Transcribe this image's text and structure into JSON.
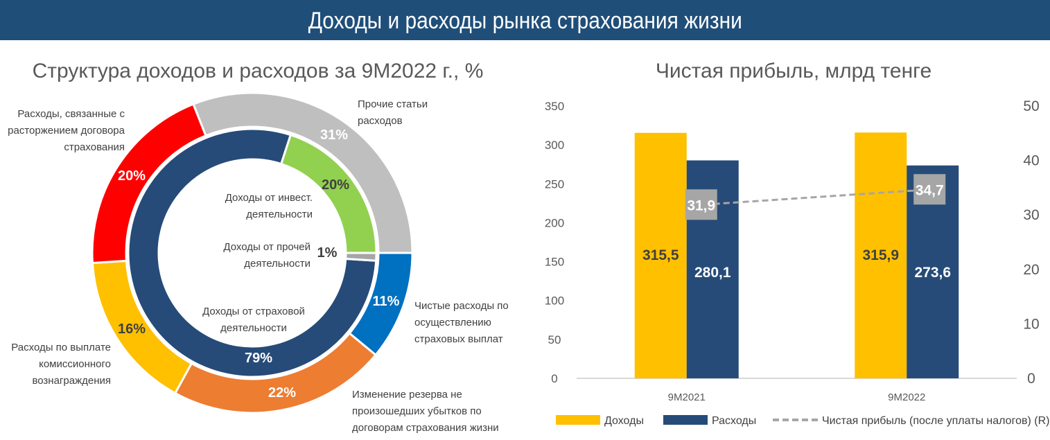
{
  "header": {
    "title": "Доходы и расходы рынка страхования жизни"
  },
  "colors": {
    "header": "#1f4e79",
    "navy": "#264b78",
    "yellow": "#ffc000",
    "gray_line": "#a6a6a6"
  },
  "chart_data": [
    {
      "type": "pie",
      "title": "Структура доходов и расходов за 9М2022 г., %",
      "rings": [
        {
          "ring": "outer",
          "slices": [
            {
              "name": "Чистые расходы по осуществлению страховых выплат",
              "value": 11,
              "label": "11%",
              "color": "#0070c0"
            },
            {
              "name": "Изменение резерва не произошедших убытков по договорам страхования жизни",
              "value": 22,
              "label": "22%",
              "color": "#ed7d31"
            },
            {
              "name": "Расходы по выплате комиссионного вознаграждения",
              "value": 16,
              "label": "16%",
              "color": "#ffc000"
            },
            {
              "name": "Расходы, связанные с расторжением договора страхования",
              "value": 20,
              "label": "20%",
              "color": "#ff0000"
            },
            {
              "name": "Прочие статьи расходов",
              "value": 31,
              "label": "31%",
              "color": "#bfbfbf"
            }
          ]
        },
        {
          "ring": "inner",
          "slices": [
            {
              "name": "Доходы от страховой деятельности",
              "value": 79,
              "label": "79%",
              "color": "#264b78"
            },
            {
              "name": "Доходы от инвест. деятельности",
              "value": 20,
              "label": "20%",
              "color": "#92d050"
            },
            {
              "name": "Доходы от прочей деятельности",
              "value": 1,
              "label": "1%",
              "color": "#a6a6a6"
            }
          ]
        }
      ]
    },
    {
      "type": "bar",
      "title": "Чистая прибыль, млрд тенге",
      "categories": [
        "9M2021",
        "9M2022"
      ],
      "ylim": [
        0,
        350
      ],
      "yticks": [
        0,
        50,
        100,
        150,
        200,
        250,
        300,
        350
      ],
      "y2lim": [
        0,
        50
      ],
      "y2ticks": [
        0,
        10,
        20,
        30,
        40,
        50
      ],
      "grid": false,
      "legend": "bottom",
      "series": [
        {
          "name": "Доходы",
          "type": "bar",
          "axis": "left",
          "values": [
            315.5,
            315.9
          ],
          "labels": [
            "315,5",
            "315,9"
          ],
          "color": "#ffc000"
        },
        {
          "name": "Расходы",
          "type": "bar",
          "axis": "left",
          "values": [
            280.1,
            273.6
          ],
          "labels": [
            "280,1",
            "273,6"
          ],
          "color": "#264b78"
        },
        {
          "name": "Чистая прибыль (после уплаты налогов) (R)",
          "type": "line",
          "dashed": true,
          "axis": "right",
          "values": [
            31.9,
            34.7
          ],
          "labels": [
            "31,9",
            "34,7"
          ],
          "color": "#a6a6a6"
        }
      ]
    }
  ]
}
